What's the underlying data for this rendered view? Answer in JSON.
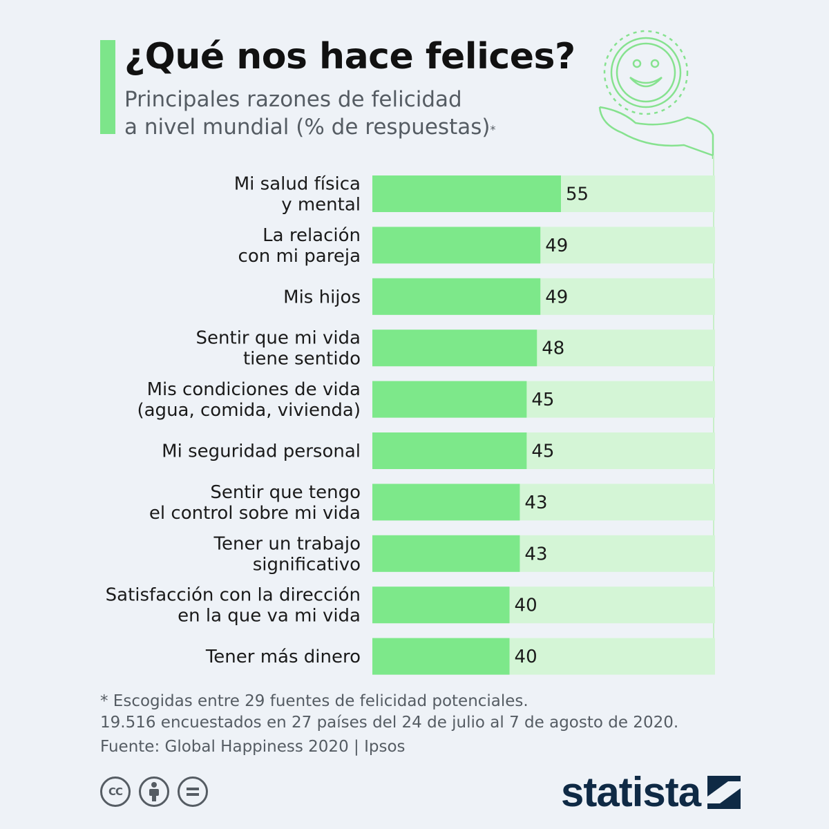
{
  "header": {
    "title": "¿Qué nos hace felices?",
    "subtitle_line1": "Principales razones de felicidad",
    "subtitle_line2": "a nivel mundial (% de respuestas)",
    "subtitle_mark": "*"
  },
  "chart_data": {
    "type": "bar",
    "orientation": "horizontal",
    "categories": [
      [
        "Mi salud física",
        "y mental"
      ],
      [
        "La relación",
        "con mi pareja"
      ],
      [
        "Mis hijos"
      ],
      [
        "Sentir que mi vida",
        "tiene sentido"
      ],
      [
        "Mis condiciones de vida",
        "(agua, comida, vivienda)"
      ],
      [
        "Mi seguridad personal"
      ],
      [
        "Sentir que tengo",
        "el control sobre mi vida"
      ],
      [
        "Tener un trabajo",
        "significativo"
      ],
      [
        "Satisfacción con la dirección",
        "en la que va mi vida"
      ],
      [
        "Tener más dinero"
      ]
    ],
    "values": [
      55,
      49,
      49,
      48,
      45,
      45,
      43,
      43,
      40,
      40
    ],
    "xlim": [
      0,
      100
    ],
    "grid": false,
    "colors": {
      "bar": "#7de88a",
      "track": "#d4f5d6"
    }
  },
  "footnote": {
    "line1": "* Escogidas entre 29 fuentes de felicidad potenciales.",
    "line2": "19.516 encuestados en 27 países del 24 de julio al 7 de agosto de 2020.",
    "source": "Fuente: Global Happiness 2020 | Ipsos"
  },
  "license_icons": [
    "creative-commons-icon",
    "attribution-icon",
    "no-derivatives-icon"
  ],
  "brand": {
    "name": "statista"
  }
}
